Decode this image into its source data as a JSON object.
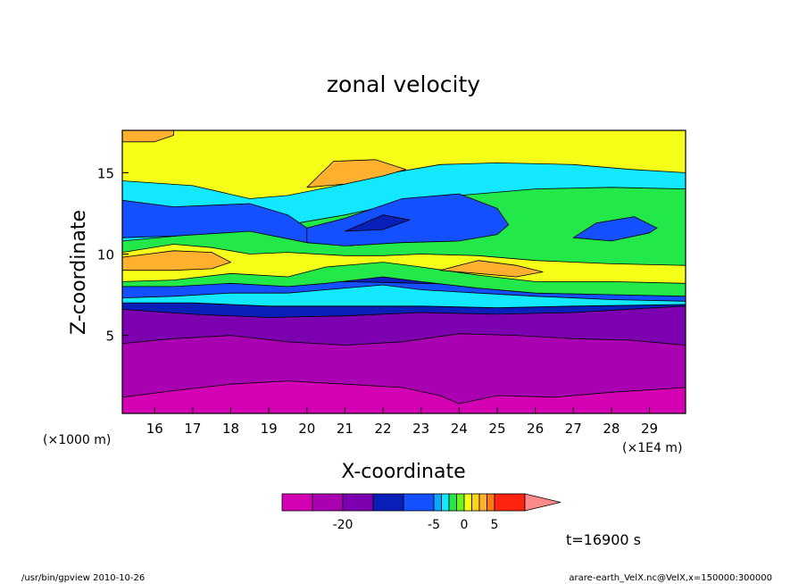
{
  "chart_data": {
    "type": "heatmap",
    "title": "zonal velocity",
    "xlabel": "X-coordinate",
    "ylabel": "Z-coordinate",
    "x_unit_left": "(×1000 m)",
    "x_unit_right": "(×1E4 m)",
    "x_ticks": [
      "16",
      "17",
      "18",
      "19",
      "20",
      "21",
      "22",
      "23",
      "24",
      "25",
      "26",
      "27",
      "28",
      "29"
    ],
    "y_ticks": [
      "5",
      "10",
      "15"
    ],
    "xlim": [
      15.15,
      29.95
    ],
    "ylim": [
      0.2,
      17.6
    ],
    "time_label": "t=16900 s",
    "footer_left": "/usr/bin/gpview   2010-10-26",
    "footer_right": "arare-earth_VelX.nc@VelX,x=150000:300000",
    "colorbar": {
      "levels": [
        -30,
        -25,
        -20,
        -15,
        -10,
        -5,
        -3,
        -2,
        -1,
        0,
        1,
        2,
        3,
        5,
        10,
        20
      ],
      "tick_labels": [
        "-20",
        "-5",
        "0",
        "5"
      ],
      "tick_values": [
        -20,
        -5,
        0,
        5
      ],
      "colors": [
        "#d400b3",
        "#a900b2",
        "#7d00b0",
        "#0a1fb8",
        "#1450ff",
        "#0fa6ff",
        "#12e8ff",
        "#22e84a",
        "#6cf51c",
        "#f6ff18",
        "#ffd21a",
        "#ffb02e",
        "#ff7a10",
        "#ff2410",
        "#ff8a8a"
      ]
    },
    "layers": [
      {
        "level": -30,
        "color": "#d400b3",
        "lower": [],
        "upper": [
          [
            15.15,
            17.6
          ],
          [
            29.95,
            17.6
          ]
        ]
      },
      {
        "level": -25,
        "color": "#a900b2",
        "lower": [
          [
            15.15,
            1.2
          ],
          [
            16.5,
            1.6
          ],
          [
            18,
            2.0
          ],
          [
            19.5,
            2.2
          ],
          [
            21,
            2.0
          ],
          [
            22.5,
            1.8
          ],
          [
            23.5,
            1.3
          ],
          [
            24,
            0.8
          ],
          [
            25,
            1.3
          ],
          [
            26.5,
            1.2
          ],
          [
            28,
            1.5
          ],
          [
            29.95,
            1.8
          ]
        ],
        "upper": [
          [
            15.15,
            17.6
          ],
          [
            29.95,
            17.6
          ]
        ]
      },
      {
        "level": -20,
        "color": "#7d00b0",
        "lower": [
          [
            15.15,
            4.5
          ],
          [
            16.5,
            4.8
          ],
          [
            18,
            5.0
          ],
          [
            19.5,
            4.6
          ],
          [
            21,
            4.4
          ],
          [
            22.5,
            4.6
          ],
          [
            24,
            5.1
          ],
          [
            25.5,
            5.0
          ],
          [
            27,
            4.8
          ],
          [
            28.5,
            4.7
          ],
          [
            29.95,
            4.4
          ]
        ],
        "upper": [
          [
            15.15,
            17.6
          ],
          [
            29.95,
            17.6
          ]
        ]
      },
      {
        "level": -15,
        "color": "#0a1fb8",
        "lower": [
          [
            15.15,
            6.6
          ],
          [
            17,
            6.3
          ],
          [
            19,
            6.1
          ],
          [
            21,
            6.2
          ],
          [
            23,
            6.4
          ],
          [
            25,
            6.3
          ],
          [
            27,
            6.4
          ],
          [
            29.95,
            6.8
          ]
        ],
        "upper": [
          [
            15.15,
            17.6
          ],
          [
            29.95,
            17.6
          ]
        ]
      },
      {
        "level": -10,
        "color": "#1450ff",
        "lower": [
          [
            15.15,
            7.0
          ],
          [
            17,
            7.0
          ],
          [
            19,
            6.8
          ],
          [
            21,
            6.8
          ],
          [
            23,
            6.8
          ],
          [
            25,
            6.7
          ],
          [
            27,
            6.8
          ],
          [
            29.95,
            6.9
          ]
        ],
        "upper": [
          [
            15.15,
            8.8
          ],
          [
            16.5,
            8.6
          ],
          [
            18,
            8.4
          ],
          [
            19.5,
            8.2
          ],
          [
            21,
            8.3
          ],
          [
            23,
            8.2
          ],
          [
            25,
            8.1
          ],
          [
            27,
            8.2
          ],
          [
            29.95,
            8.2
          ]
        ]
      },
      {
        "level": -5,
        "color": "#12e8ff",
        "lower": [
          [
            15.15,
            7.0
          ],
          [
            17,
            7.0
          ],
          [
            19,
            6.8
          ],
          [
            21,
            6.8
          ],
          [
            23,
            6.8
          ],
          [
            25,
            6.7
          ],
          [
            27,
            6.8
          ],
          [
            29.95,
            6.9
          ]
        ],
        "upper": [
          [
            15.15,
            7.3
          ],
          [
            16.5,
            7.4
          ],
          [
            18,
            7.6
          ],
          [
            19.5,
            7.6
          ],
          [
            20.5,
            7.8
          ],
          [
            22,
            8.1
          ],
          [
            23,
            7.8
          ],
          [
            24.5,
            7.6
          ],
          [
            26,
            7.4
          ],
          [
            28,
            7.2
          ],
          [
            29.95,
            7.1
          ]
        ]
      },
      {
        "level": -5,
        "color": "#12e8ff",
        "lower": [
          [
            15.15,
            10.6
          ],
          [
            17,
            10.8
          ],
          [
            18.5,
            11.0
          ],
          [
            19.5,
            11.3
          ],
          [
            21,
            11.8
          ],
          [
            22,
            12.3
          ],
          [
            23,
            12.6
          ],
          [
            24,
            12.9
          ],
          [
            26,
            13.1
          ],
          [
            28,
            13.0
          ],
          [
            29.95,
            13.0
          ]
        ],
        "upper": [
          [
            15.15,
            17.6
          ],
          [
            29.95,
            17.6
          ]
        ]
      },
      {
        "level": 0,
        "color": "#22e84a",
        "lower": [
          [
            15.15,
            8.0
          ],
          [
            16.5,
            8.0
          ],
          [
            18,
            8.2
          ],
          [
            19.5,
            8.0
          ],
          [
            20.5,
            8.2
          ],
          [
            22,
            8.6
          ],
          [
            23,
            8.3
          ],
          [
            24.5,
            7.9
          ],
          [
            26,
            7.6
          ],
          [
            28,
            7.5
          ],
          [
            29.95,
            7.4
          ]
        ],
        "upper": [
          [
            15.15,
            10.8
          ],
          [
            17,
            11.2
          ],
          [
            18.5,
            11.5
          ],
          [
            19.5,
            11.8
          ],
          [
            21,
            12.4
          ],
          [
            22,
            12.9
          ],
          [
            23,
            13.3
          ],
          [
            24,
            13.6
          ],
          [
            26,
            14.0
          ],
          [
            28,
            14.1
          ],
          [
            29.95,
            14.0
          ]
        ]
      },
      {
        "level": 0,
        "color": "#f6ff18",
        "lower": [
          [
            15.15,
            8.3
          ],
          [
            16.5,
            8.4
          ],
          [
            18,
            8.8
          ],
          [
            19.5,
            8.6
          ],
          [
            20.5,
            9.2
          ],
          [
            22,
            9.5
          ],
          [
            23,
            9.2
          ],
          [
            24.5,
            8.7
          ],
          [
            26,
            8.3
          ],
          [
            28,
            8.3
          ],
          [
            29.95,
            8.2
          ]
        ],
        "upper": [
          [
            15.15,
            10.1
          ],
          [
            16.5,
            10.6
          ],
          [
            17.5,
            10.4
          ],
          [
            18.5,
            10.0
          ],
          [
            19.5,
            10.1
          ],
          [
            21,
            9.9
          ],
          [
            22,
            9.9
          ],
          [
            23,
            10.0
          ],
          [
            24.5,
            9.9
          ],
          [
            26,
            9.6
          ],
          [
            28,
            9.4
          ],
          [
            29.95,
            9.3
          ]
        ]
      },
      {
        "level": 0,
        "color": "#f6ff18",
        "lower": [
          [
            15.15,
            14.5
          ],
          [
            17,
            14.2
          ],
          [
            18.5,
            13.4
          ],
          [
            19.5,
            13.6
          ],
          [
            21,
            14.3
          ],
          [
            22,
            14.9
          ],
          [
            23.5,
            15.5
          ],
          [
            25,
            15.6
          ],
          [
            27,
            15.5
          ],
          [
            28.5,
            15.2
          ],
          [
            29.95,
            15.0
          ]
        ],
        "upper": [
          [
            15.15,
            17.6
          ],
          [
            29.95,
            17.6
          ]
        ]
      },
      {
        "level": 3,
        "color": "#ffb02e",
        "lower": [
          [
            15.15,
            9.0
          ],
          [
            16.5,
            9.0
          ],
          [
            17.5,
            9.1
          ],
          [
            18,
            9.5
          ]
        ],
        "upper": [
          [
            15.15,
            9.8
          ],
          [
            16.5,
            10.2
          ],
          [
            17.5,
            10.1
          ],
          [
            18,
            9.5
          ]
        ]
      },
      {
        "level": 3,
        "color": "#ffb02e",
        "lower": [
          [
            23.5,
            9.0
          ],
          [
            24.5,
            8.8
          ],
          [
            25.5,
            8.6
          ],
          [
            26.2,
            8.9
          ]
        ],
        "upper": [
          [
            23.5,
            9.0
          ],
          [
            24.5,
            9.6
          ],
          [
            25.5,
            9.3
          ],
          [
            26.2,
            8.9
          ]
        ]
      },
      {
        "level": 3,
        "color": "#ffb02e",
        "lower": [
          [
            20,
            14.1
          ],
          [
            21,
            14.3
          ],
          [
            22,
            14.8
          ],
          [
            22.6,
            15.2
          ]
        ],
        "upper": [
          [
            20,
            14.1
          ],
          [
            20.7,
            15.7
          ],
          [
            21.8,
            15.8
          ],
          [
            22.6,
            15.2
          ]
        ]
      },
      {
        "level": 3,
        "color": "#ffb02e",
        "lower": [
          [
            15.15,
            16.9
          ],
          [
            16,
            16.9
          ],
          [
            16.5,
            17.3
          ]
        ],
        "upper": [
          [
            15.15,
            17.6
          ],
          [
            16.5,
            17.6
          ]
        ]
      },
      {
        "level": -10,
        "color": "#1450ff",
        "lower": [
          [
            15.15,
            11.0
          ],
          [
            16.5,
            11.1
          ],
          [
            18.5,
            11.4
          ],
          [
            20,
            10.7
          ],
          [
            21.2,
            10.5
          ]
        ],
        "upper": [
          [
            15.15,
            13.3
          ],
          [
            16.5,
            12.9
          ],
          [
            18.5,
            13.1
          ],
          [
            19.5,
            12.4
          ],
          [
            20,
            11.6
          ]
        ]
      },
      {
        "level": -10,
        "color": "#1450ff",
        "lower": [
          [
            20,
            10.7
          ],
          [
            21,
            10.5
          ],
          [
            22.5,
            10.7
          ],
          [
            24,
            10.8
          ],
          [
            25,
            11.2
          ],
          [
            25.3,
            11.8
          ]
        ],
        "upper": [
          [
            20,
            11.6
          ],
          [
            21,
            12.2
          ],
          [
            22.5,
            13.4
          ],
          [
            24,
            13.7
          ],
          [
            25,
            12.8
          ],
          [
            25.3,
            11.8
          ]
        ]
      },
      {
        "level": -10,
        "color": "#1450ff",
        "lower": [
          [
            27,
            11.0
          ],
          [
            28,
            10.8
          ],
          [
            29,
            11.3
          ],
          [
            29.2,
            11.6
          ]
        ],
        "upper": [
          [
            27,
            11.0
          ],
          [
            27.6,
            11.9
          ],
          [
            28.6,
            12.3
          ],
          [
            29.2,
            11.6
          ]
        ]
      },
      {
        "level": -15,
        "color": "#0a1fb8",
        "lower": [
          [
            21,
            11.4
          ],
          [
            22,
            11.5
          ],
          [
            22.7,
            12.1
          ]
        ],
        "upper": [
          [
            21,
            11.4
          ],
          [
            22,
            12.4
          ],
          [
            22.7,
            12.1
          ]
        ]
      }
    ]
  }
}
